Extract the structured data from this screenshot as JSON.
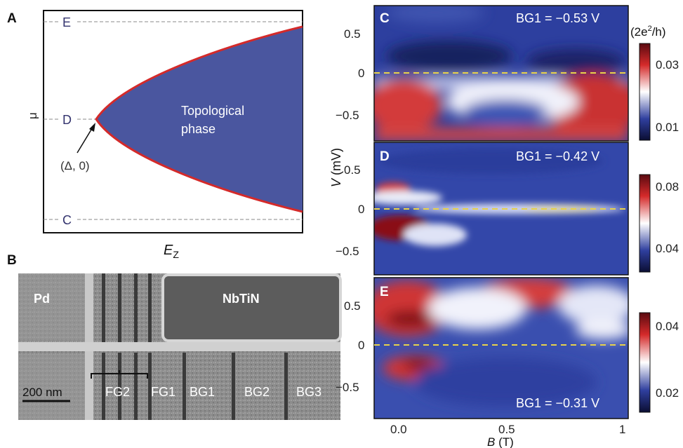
{
  "panel_a": {
    "label": "A",
    "ylabel": "μ",
    "xlabel": "E",
    "xlabel_sub": "Z",
    "levels": [
      "E",
      "D",
      "C"
    ],
    "region_label_1": "Topological",
    "region_label_2": "phase",
    "point_label": "(Δ, 0)",
    "colors": {
      "phase_fill": "#4a569f",
      "boundary": "#d42a2a",
      "level_line": "#888888",
      "level_text": "#33336e"
    }
  },
  "panel_b": {
    "label": "B",
    "left_contact": "Pd",
    "right_contact": "NbTiN",
    "scale_bar": "200 nm",
    "gates": [
      "FG2",
      "FG1",
      "BG1",
      "BG2",
      "BG3"
    ]
  },
  "panels_cde": {
    "colorbar_unit_prefix": "(2e",
    "colorbar_unit_sup": "2",
    "colorbar_unit_suffix": "/h)",
    "ylabel_italic": "V",
    "ylabel_units": "(mV)",
    "xlabel_italic": "B",
    "xlabel_units": "(T)",
    "x_ticks": [
      "0.0",
      "0.5",
      "1"
    ],
    "y_ticks": [
      "0.5",
      "0",
      "−0.5"
    ],
    "zero_line_color": "#e8d24a",
    "panels": [
      {
        "label": "C",
        "gate_voltage": "BG1 = −0.53 V",
        "colorbar_ticks": [
          "0.03",
          "0.01"
        ]
      },
      {
        "label": "D",
        "gate_voltage": "BG1 = −0.42 V",
        "colorbar_ticks": [
          "0.08",
          "0.04"
        ]
      },
      {
        "label": "E",
        "gate_voltage": "BG1 = −0.31 V",
        "colorbar_ticks": [
          "0.04",
          "0.02"
        ]
      }
    ]
  }
}
